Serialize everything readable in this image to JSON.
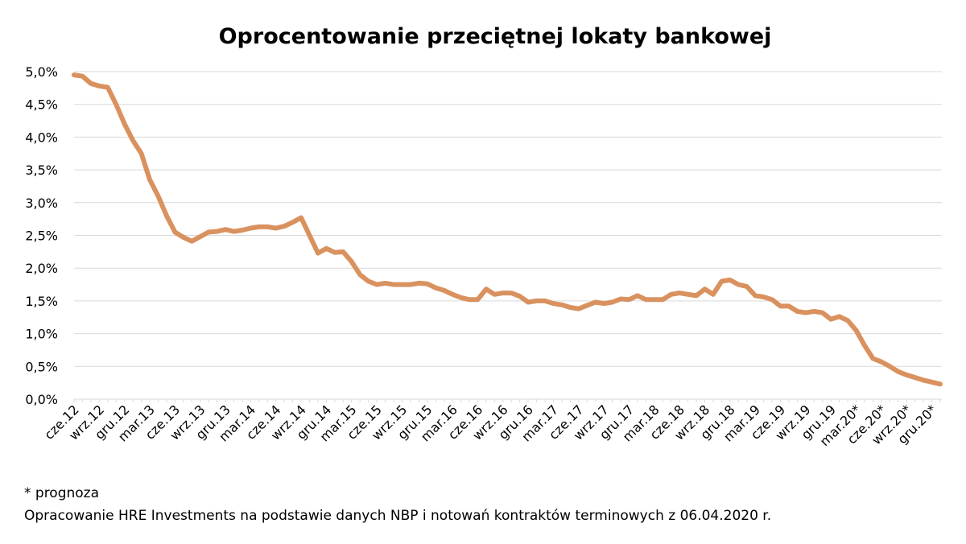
{
  "chart_data": {
    "type": "line",
    "title": "Oprocentowanie przeciętnej lokaty bankowej",
    "xlabel": "",
    "ylabel": "",
    "ylim": [
      0,
      5
    ],
    "y_ticks": [
      "0,0%",
      "0,5%",
      "1,0%",
      "1,5%",
      "2,0%",
      "2,5%",
      "3,0%",
      "3,5%",
      "4,0%",
      "4,5%",
      "5,0%"
    ],
    "y_tick_values": [
      0,
      0.5,
      1,
      1.5,
      2,
      2.5,
      3,
      3.5,
      4,
      4.5,
      5
    ],
    "x_tick_labels": [
      "cze.12",
      "wrz.12",
      "gru.12",
      "mar.13",
      "cze.13",
      "wrz.13",
      "gru.13",
      "mar.14",
      "cze.14",
      "wrz.14",
      "gru.14",
      "mar.15",
      "cze.15",
      "wrz.15",
      "gru.15",
      "mar.16",
      "cze.16",
      "wrz.16",
      "gru.16",
      "mar.17",
      "cze.17",
      "wrz.17",
      "gru.17",
      "mar.18",
      "cze.18",
      "wrz.18",
      "gru.18",
      "mar.19",
      "cze.19",
      "wrz.19",
      "gru.19",
      "mar.20*",
      "cze.20*",
      "wrz.20*",
      "gru.20*"
    ],
    "grid": true,
    "legend": "none",
    "series": [
      {
        "name": "Oprocentowanie przeciętnej lokaty bankowej",
        "color": "#D9925F",
        "values": [
          4.95,
          4.93,
          4.82,
          4.78,
          4.76,
          4.5,
          4.2,
          3.95,
          3.75,
          3.35,
          3.1,
          2.8,
          2.55,
          2.47,
          2.41,
          2.48,
          2.55,
          2.56,
          2.59,
          2.56,
          2.58,
          2.61,
          2.63,
          2.63,
          2.61,
          2.64,
          2.7,
          2.77,
          2.5,
          2.23,
          2.3,
          2.24,
          2.25,
          2.1,
          1.9,
          1.8,
          1.75,
          1.77,
          1.75,
          1.75,
          1.75,
          1.77,
          1.76,
          1.7,
          1.66,
          1.6,
          1.55,
          1.52,
          1.52,
          1.68,
          1.6,
          1.62,
          1.62,
          1.57,
          1.48,
          1.5,
          1.5,
          1.46,
          1.44,
          1.4,
          1.38,
          1.43,
          1.48,
          1.46,
          1.48,
          1.53,
          1.52,
          1.58,
          1.52,
          1.52,
          1.52,
          1.6,
          1.62,
          1.6,
          1.58,
          1.68,
          1.6,
          1.8,
          1.82,
          1.75,
          1.72,
          1.58,
          1.56,
          1.52,
          1.42,
          1.42,
          1.34,
          1.32,
          1.34,
          1.32,
          1.22,
          1.26,
          1.2,
          1.05,
          0.82,
          0.62,
          0.57,
          0.5,
          0.42,
          0.37,
          0.33,
          0.29,
          0.26,
          0.23
        ]
      }
    ]
  },
  "footnote": "* prognoza",
  "source": "Opracowanie HRE Investments na podstawie danych NBP i notowań kontraktów terminowych z 06.04.2020 r."
}
